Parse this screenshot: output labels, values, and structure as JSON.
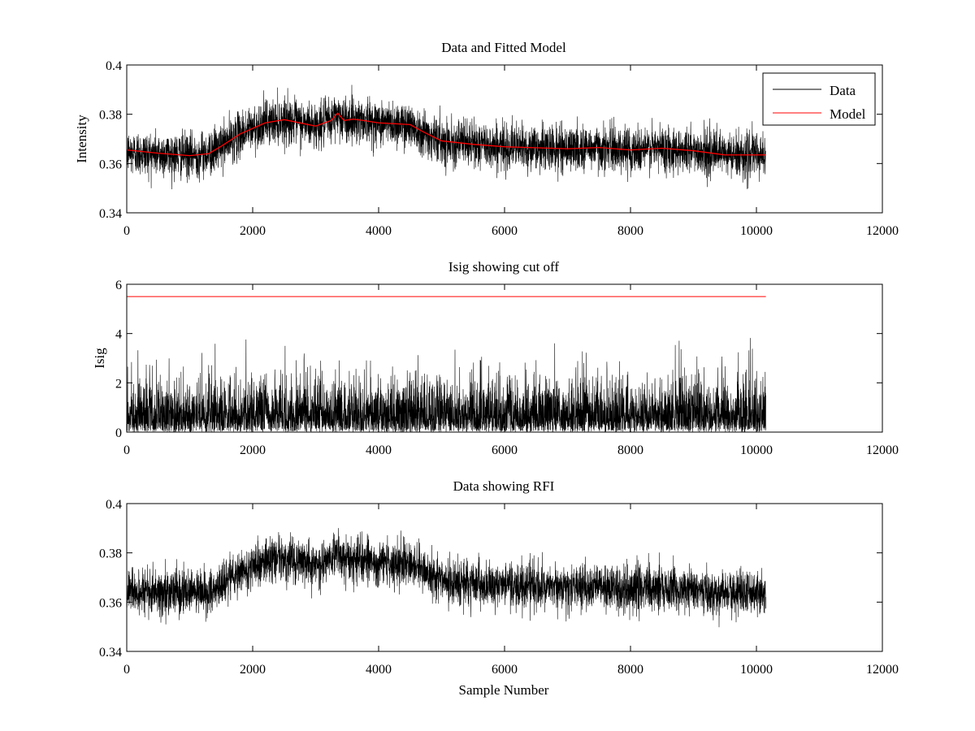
{
  "chart_data": [
    {
      "type": "line",
      "title": "Data and Fitted Model",
      "xlabel": "",
      "ylabel": "Intensity",
      "xlim": [
        0,
        12000
      ],
      "ylim": [
        0.34,
        0.4
      ],
      "xticks": [
        0,
        2000,
        4000,
        6000,
        8000,
        10000,
        12000
      ],
      "xtick_labels": [
        "0",
        "2000",
        "4000",
        "6000",
        "8000",
        "10000",
        "12000"
      ],
      "yticks": [
        0.34,
        0.36,
        0.38,
        0.4
      ],
      "ytick_labels": [
        "0.34",
        "0.36",
        "0.38",
        "0.4"
      ],
      "grid": false,
      "legend": "top-right",
      "series": [
        {
          "name": "Data",
          "color": "#000000",
          "kind": "noisy",
          "x_range": [
            0,
            10150
          ],
          "samples": 10150,
          "noise_amplitude": 0.0045,
          "max_excursion": 0.014,
          "trend_x": [
            0,
            1000,
            1300,
            1500,
            1800,
            2200,
            2500,
            3000,
            3250,
            3350,
            3450,
            3600,
            3750,
            4000,
            4500,
            4700,
            5000,
            5500,
            6000,
            7000,
            7500,
            8000,
            8500,
            9000,
            9500,
            10150
          ],
          "trend_y": [
            0.3645,
            0.3632,
            0.364,
            0.367,
            0.372,
            0.3765,
            0.3778,
            0.3752,
            0.3775,
            0.3805,
            0.3775,
            0.378,
            0.3775,
            0.3765,
            0.3758,
            0.373,
            0.3692,
            0.3678,
            0.3668,
            0.366,
            0.3665,
            0.3655,
            0.3662,
            0.3652,
            0.3635,
            0.3635
          ]
        },
        {
          "name": "Model",
          "color": "#ff0000",
          "kind": "line",
          "x": [
            0,
            500,
            1000,
            1300,
            1500,
            1800,
            2200,
            2500,
            3000,
            3250,
            3350,
            3450,
            3600,
            3750,
            4000,
            4500,
            4700,
            5000,
            5500,
            6000,
            7000,
            7500,
            8000,
            8500,
            9000,
            9500,
            10150
          ],
          "y": [
            0.3655,
            0.3642,
            0.3632,
            0.364,
            0.367,
            0.372,
            0.3765,
            0.3778,
            0.3752,
            0.3775,
            0.3805,
            0.3775,
            0.378,
            0.3775,
            0.3765,
            0.3758,
            0.373,
            0.3692,
            0.3678,
            0.3668,
            0.366,
            0.3665,
            0.3655,
            0.3662,
            0.3652,
            0.3635,
            0.3635
          ]
        }
      ]
    },
    {
      "type": "line",
      "title": "Isig showing cut off",
      "xlabel": "",
      "ylabel": "Isig",
      "xlim": [
        0,
        12000
      ],
      "ylim": [
        0,
        6
      ],
      "xticks": [
        0,
        2000,
        4000,
        6000,
        8000,
        10000,
        12000
      ],
      "xtick_labels": [
        "0",
        "2000",
        "4000",
        "6000",
        "8000",
        "10000",
        "12000"
      ],
      "yticks": [
        0,
        2,
        4,
        6
      ],
      "ytick_labels": [
        "0",
        "2",
        "4",
        "6"
      ],
      "grid": false,
      "series": [
        {
          "color": "#000000",
          "kind": "abs_noise",
          "x_range": [
            0,
            10150
          ],
          "samples": 10150,
          "typical_max": 2.5,
          "peak": 3.9
        },
        {
          "color": "#ff0000",
          "kind": "line",
          "x": [
            0,
            10150
          ],
          "y": [
            5.5,
            5.5
          ]
        }
      ]
    },
    {
      "type": "line",
      "title": "Data showing RFI",
      "xlabel": "Sample Number",
      "ylabel": "",
      "xlim": [
        0,
        12000
      ],
      "ylim": [
        0.34,
        0.4
      ],
      "xticks": [
        0,
        2000,
        4000,
        6000,
        8000,
        10000,
        12000
      ],
      "xtick_labels": [
        "0",
        "2000",
        "4000",
        "6000",
        "8000",
        "10000",
        "12000"
      ],
      "yticks": [
        0.34,
        0.36,
        0.38,
        0.4
      ],
      "ytick_labels": [
        "0.34",
        "0.36",
        "0.38",
        "0.4"
      ],
      "grid": false,
      "series": [
        {
          "color": "#000000",
          "kind": "noisy",
          "x_range": [
            0,
            10150
          ],
          "samples": 10150,
          "noise_amplitude": 0.0045,
          "max_excursion": 0.014,
          "trend_x": [
            0,
            1000,
            1300,
            1500,
            1800,
            2200,
            2500,
            3000,
            3250,
            3350,
            3450,
            3600,
            3750,
            4000,
            4500,
            4700,
            5000,
            5500,
            6000,
            7000,
            7500,
            8000,
            8500,
            9000,
            9500,
            10150
          ],
          "trend_y": [
            0.3645,
            0.3632,
            0.364,
            0.367,
            0.372,
            0.3765,
            0.3778,
            0.3752,
            0.3775,
            0.3805,
            0.3775,
            0.378,
            0.3775,
            0.3765,
            0.3758,
            0.373,
            0.3692,
            0.3678,
            0.3668,
            0.366,
            0.3665,
            0.3655,
            0.3662,
            0.3652,
            0.3635,
            0.3635
          ]
        }
      ]
    }
  ]
}
